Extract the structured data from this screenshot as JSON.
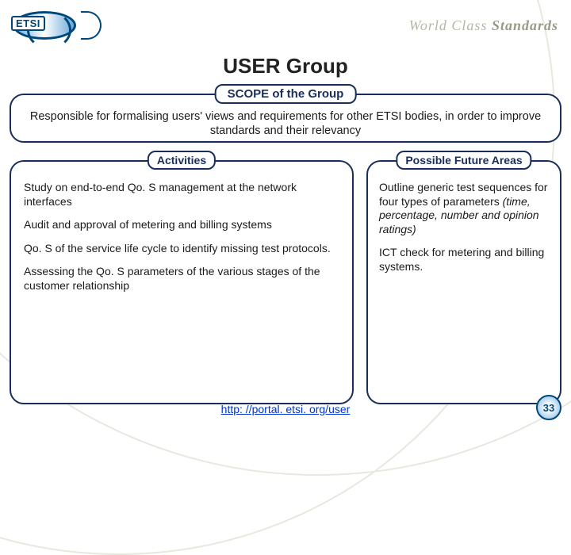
{
  "header": {
    "logo_text": "ETSI",
    "tagline_prefix": "World Class ",
    "tagline_bold": "Standards"
  },
  "title": "USER Group",
  "scope": {
    "label": "SCOPE of the Group",
    "text": "Responsible for formalising users' views and requirements for other ETSI bodies, in order to improve standards and their relevancy"
  },
  "activities": {
    "label": "Activities",
    "items": [
      "Study on end-to-end Qo. S management at the network interfaces",
      "Audit and approval of metering and billing systems",
      "Qo. S of the service life cycle to identify missing test protocols.",
      "Assessing the Qo. S parameters of the various stages of the customer relationship"
    ]
  },
  "future": {
    "label": "Possible Future Areas",
    "p1_prefix": "Outline generic test sequences for four types of parameters ",
    "p1_italic": "(time, percentage, number and opinion ratings)",
    "p2": "ICT check for metering and billing systems."
  },
  "footer": {
    "url": "http: //portal. etsi. org/user"
  },
  "page_number": "33",
  "colors": {
    "border": "#1a2e5a",
    "brand": "#00487c",
    "link": "#0033cc"
  }
}
